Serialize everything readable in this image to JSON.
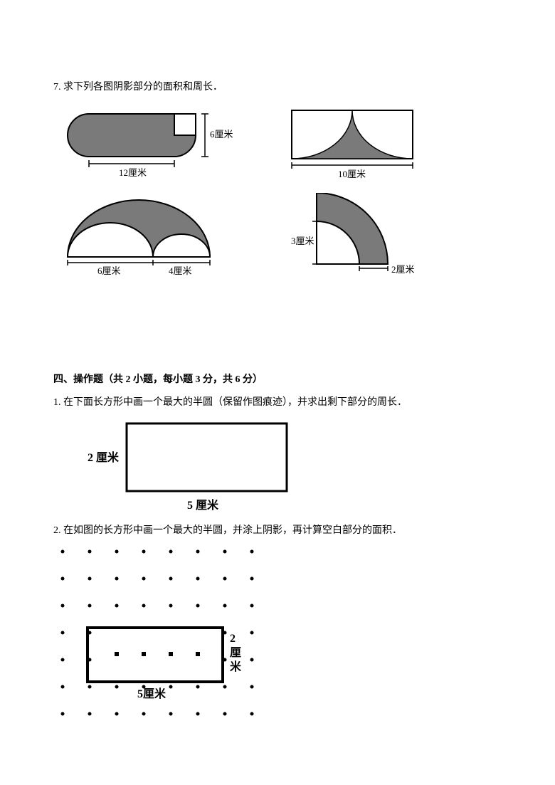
{
  "q7": {
    "text": "7. 求下列各图阴影部分的面积和周长．",
    "fig1": {
      "width_label": "12厘米",
      "height_label": "6厘米",
      "fill": "#7a7a7a",
      "stroke": "#000000",
      "white": "#ffffff"
    },
    "fig2": {
      "width_label": "10厘米",
      "fill": "#7a7a7a",
      "stroke": "#000000"
    },
    "fig3": {
      "label_a": "6厘米",
      "label_b": "4厘米",
      "fill": "#7a7a7a",
      "stroke": "#000000"
    },
    "fig4": {
      "label_r1": "3厘米",
      "label_r2": "2厘米",
      "fill": "#7a7a7a",
      "stroke": "#000000"
    }
  },
  "section4": {
    "title": "四、操作题（共 2 小题，每小题 3 分，共 6 分）",
    "q1": {
      "text": "1. 在下面长方形中画一个最大的半圆（保留作图痕迹），并求出剩下部分的周长．",
      "height_label": "2 厘米",
      "width_label": "5 厘米",
      "stroke": "#000000"
    },
    "q2": {
      "text": "2. 在如图的长方形中画一个最大的半圆，并涂上阴影，再计算空白部分的面积．",
      "height_label_a": "2",
      "height_label_b": "厘",
      "height_label_c": "米",
      "width_label": "5厘米",
      "stroke": "#000000",
      "dot_color": "#000000"
    }
  }
}
